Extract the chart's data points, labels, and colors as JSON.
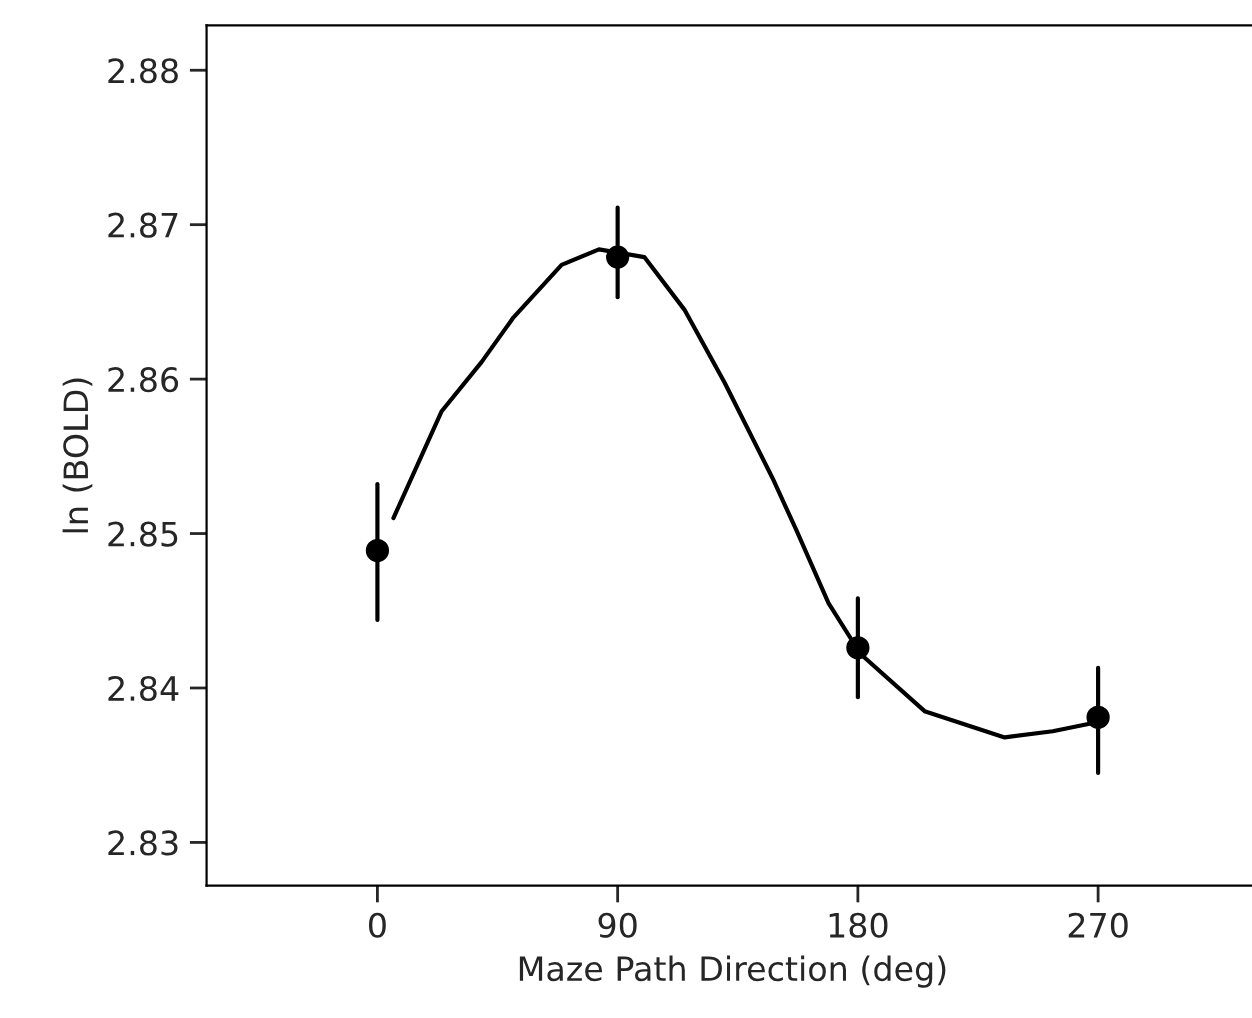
{
  "chart_data": {
    "type": "scatter",
    "xlabel": "Maze Path Direction (deg)",
    "ylabel": "ln (BOLD)",
    "xlim": [
      -64,
      330
    ],
    "xticks": [
      0,
      90,
      180,
      270
    ],
    "ylim": [
      2.8272,
      2.8829
    ],
    "yticks": [
      2.83,
      2.84,
      2.85,
      2.86,
      2.87,
      2.88
    ],
    "grid": false,
    "legend": false,
    "series": [
      {
        "type": "line",
        "color": "#000000",
        "marker": "none",
        "line_style": "solid",
        "x": [
          6,
          24,
          39,
          51,
          69,
          83,
          100,
          115,
          130,
          148,
          157,
          169,
          181,
          205,
          235,
          253,
          270
        ],
        "values": [
          2.851,
          2.8579,
          2.8611,
          2.864,
          2.8674,
          2.8684,
          2.8679,
          2.8645,
          2.8598,
          2.8536,
          2.8502,
          2.8455,
          2.8422,
          2.8385,
          2.8368,
          2.8372,
          2.8378
        ]
      },
      {
        "color": "#000000",
        "marker": "circle",
        "x": [
          0,
          90,
          180,
          270
        ],
        "values": [
          2.8489,
          2.8679,
          2.8426,
          2.8381
        ],
        "errors": [
          [
            2.8444,
            2.8532
          ],
          [
            2.8653,
            2.8711
          ],
          [
            2.8394,
            2.8458
          ],
          [
            2.8345,
            2.8413
          ]
        ]
      }
    ]
  }
}
